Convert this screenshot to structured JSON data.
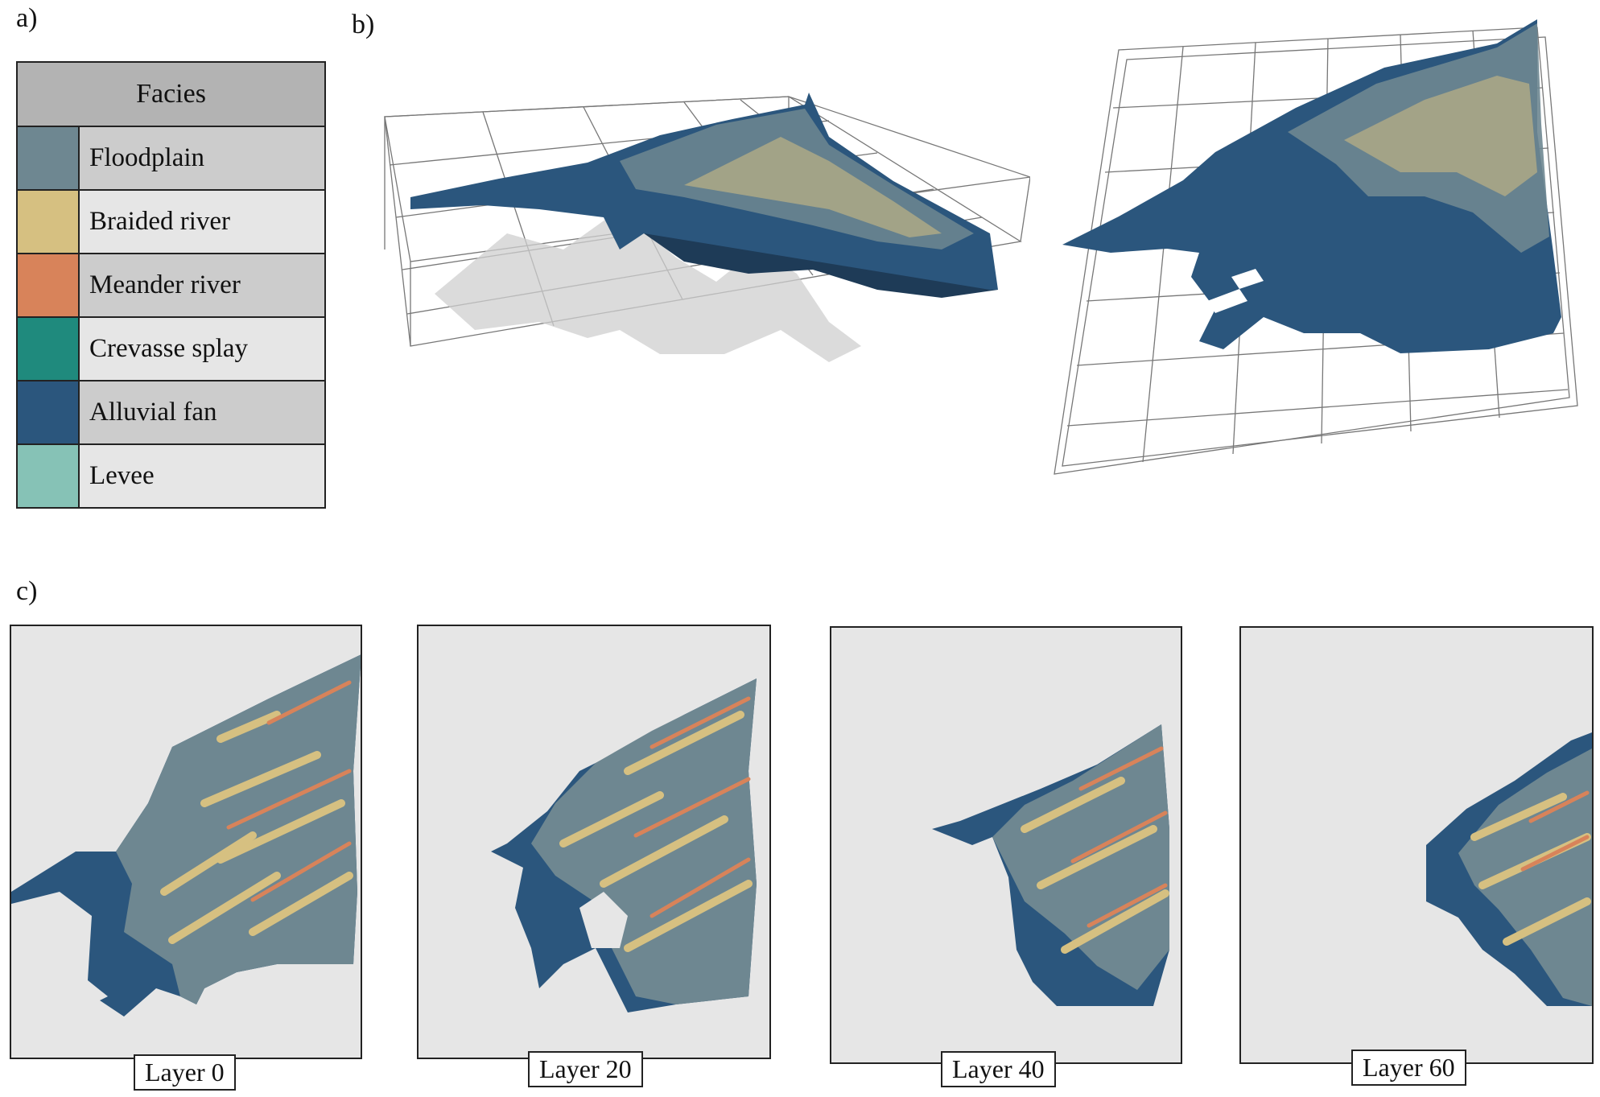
{
  "labels": {
    "a": "a)",
    "b": "b)",
    "c": "c)"
  },
  "legend": {
    "title": "Facies",
    "items": [
      {
        "label": "Floodplain",
        "color": "#6e8791"
      },
      {
        "label": "Braided river",
        "color": "#d6c081"
      },
      {
        "label": "Meander river",
        "color": "#d8835a"
      },
      {
        "label": "Crevasse splay",
        "color": "#1f8a7d"
      },
      {
        "label": "Alluvial fan",
        "color": "#2b567d"
      },
      {
        "label": "Levee",
        "color": "#86c2b6"
      }
    ]
  },
  "layers": [
    {
      "label": "Layer 0"
    },
    {
      "label": "Layer 20"
    },
    {
      "label": "Layer 40"
    },
    {
      "label": "Layer 60"
    }
  ]
}
